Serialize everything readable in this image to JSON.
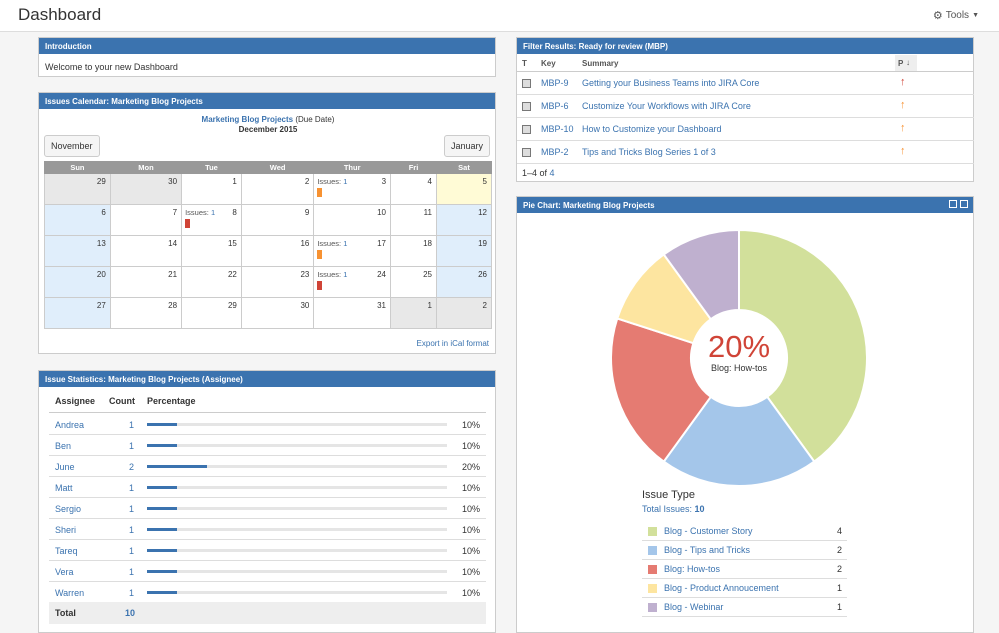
{
  "header": {
    "title": "Dashboard",
    "tools_label": "Tools"
  },
  "intro": {
    "title": "Introduction",
    "text": "Welcome to your new Dashboard"
  },
  "calendar": {
    "title": "Issues Calendar: Marketing Blog Projects",
    "project_link": "Marketing Blog Projects",
    "due_note": "(Due Date)",
    "month": "December 2015",
    "prev": "November",
    "next": "January",
    "days": [
      "Sun",
      "Mon",
      "Tue",
      "Wed",
      "Thur",
      "Fri",
      "Sat"
    ],
    "weeks": [
      [
        "29",
        "30",
        "1",
        "2",
        "3",
        "4",
        "5"
      ],
      [
        "6",
        "7",
        "8",
        "9",
        "10",
        "11",
        "12"
      ],
      [
        "13",
        "14",
        "15",
        "16",
        "17",
        "18",
        "19"
      ],
      [
        "20",
        "21",
        "22",
        "23",
        "24",
        "25",
        "26"
      ],
      [
        "27",
        "28",
        "29",
        "30",
        "31",
        "1",
        "2"
      ]
    ],
    "issues_label": "Issues:",
    "issue_count": "1",
    "export": "Export in iCal format",
    "colors": {
      "orange": "#f79232",
      "red": "#d04437"
    }
  },
  "stats": {
    "title": "Issue Statistics: Marketing Blog Projects (Assignee)",
    "headers": {
      "assignee": "Assignee",
      "count": "Count",
      "percentage": "Percentage"
    },
    "rows": [
      {
        "name": "Andrea",
        "count": "1",
        "pct": "10%",
        "fraction": 0.1
      },
      {
        "name": "Ben",
        "count": "1",
        "pct": "10%",
        "fraction": 0.1
      },
      {
        "name": "June",
        "count": "2",
        "pct": "20%",
        "fraction": 0.2
      },
      {
        "name": "Matt",
        "count": "1",
        "pct": "10%",
        "fraction": 0.1
      },
      {
        "name": "Sergio",
        "count": "1",
        "pct": "10%",
        "fraction": 0.1
      },
      {
        "name": "Sheri",
        "count": "1",
        "pct": "10%",
        "fraction": 0.1
      },
      {
        "name": "Tareq",
        "count": "1",
        "pct": "10%",
        "fraction": 0.1
      },
      {
        "name": "Vera",
        "count": "1",
        "pct": "10%",
        "fraction": 0.1
      },
      {
        "name": "Warren",
        "count": "1",
        "pct": "10%",
        "fraction": 0.1
      }
    ],
    "total_label": "Total",
    "total": "10"
  },
  "filter": {
    "title": "Filter Results: Ready for review (MBP)",
    "headers": {
      "t": "T",
      "key": "Key",
      "summary": "Summary",
      "p": "P"
    },
    "rows": [
      {
        "key": "MBP-9",
        "summary": "Getting your Business Teams into JIRA Core",
        "priority_color": "#d04437"
      },
      {
        "key": "MBP-6",
        "summary": "Customize Your Workflows with JIRA Core",
        "priority_color": "#f79232"
      },
      {
        "key": "MBP-10",
        "summary": "How to Customize your Dashboard",
        "priority_color": "#f79232"
      },
      {
        "key": "MBP-2",
        "summary": "Tips and Tricks Blog Series 1 of 3",
        "priority_color": "#f79232"
      }
    ],
    "pager_text": "1–4 of",
    "pager_total": "4"
  },
  "pie": {
    "title": "Pie Chart: Marketing Blog Projects",
    "center_value": "20%",
    "center_label": "Blog: How-tos",
    "legend_title": "Issue Type",
    "total_label": "Total Issues:",
    "total": "10"
  },
  "chart_data": {
    "type": "pie",
    "title": "Issue Type",
    "labels": [
      "Blog - Customer Story",
      "Blog - Tips and Tricks",
      "Blog: How-tos",
      "Blog - Product Annoucement",
      "Blog - Webinar"
    ],
    "legend_labels": [
      "Blog - Customer Story",
      "Blog - Tips and Tricks",
      "Blog: How-tos",
      "Blog - Product Annoucement",
      "Blog - Webinar"
    ],
    "values": [
      4,
      2,
      2,
      1,
      1
    ],
    "colors": [
      "#d2e09b",
      "#a4c6ea",
      "#e57b72",
      "#fde5a0",
      "#bfb0cf"
    ]
  }
}
